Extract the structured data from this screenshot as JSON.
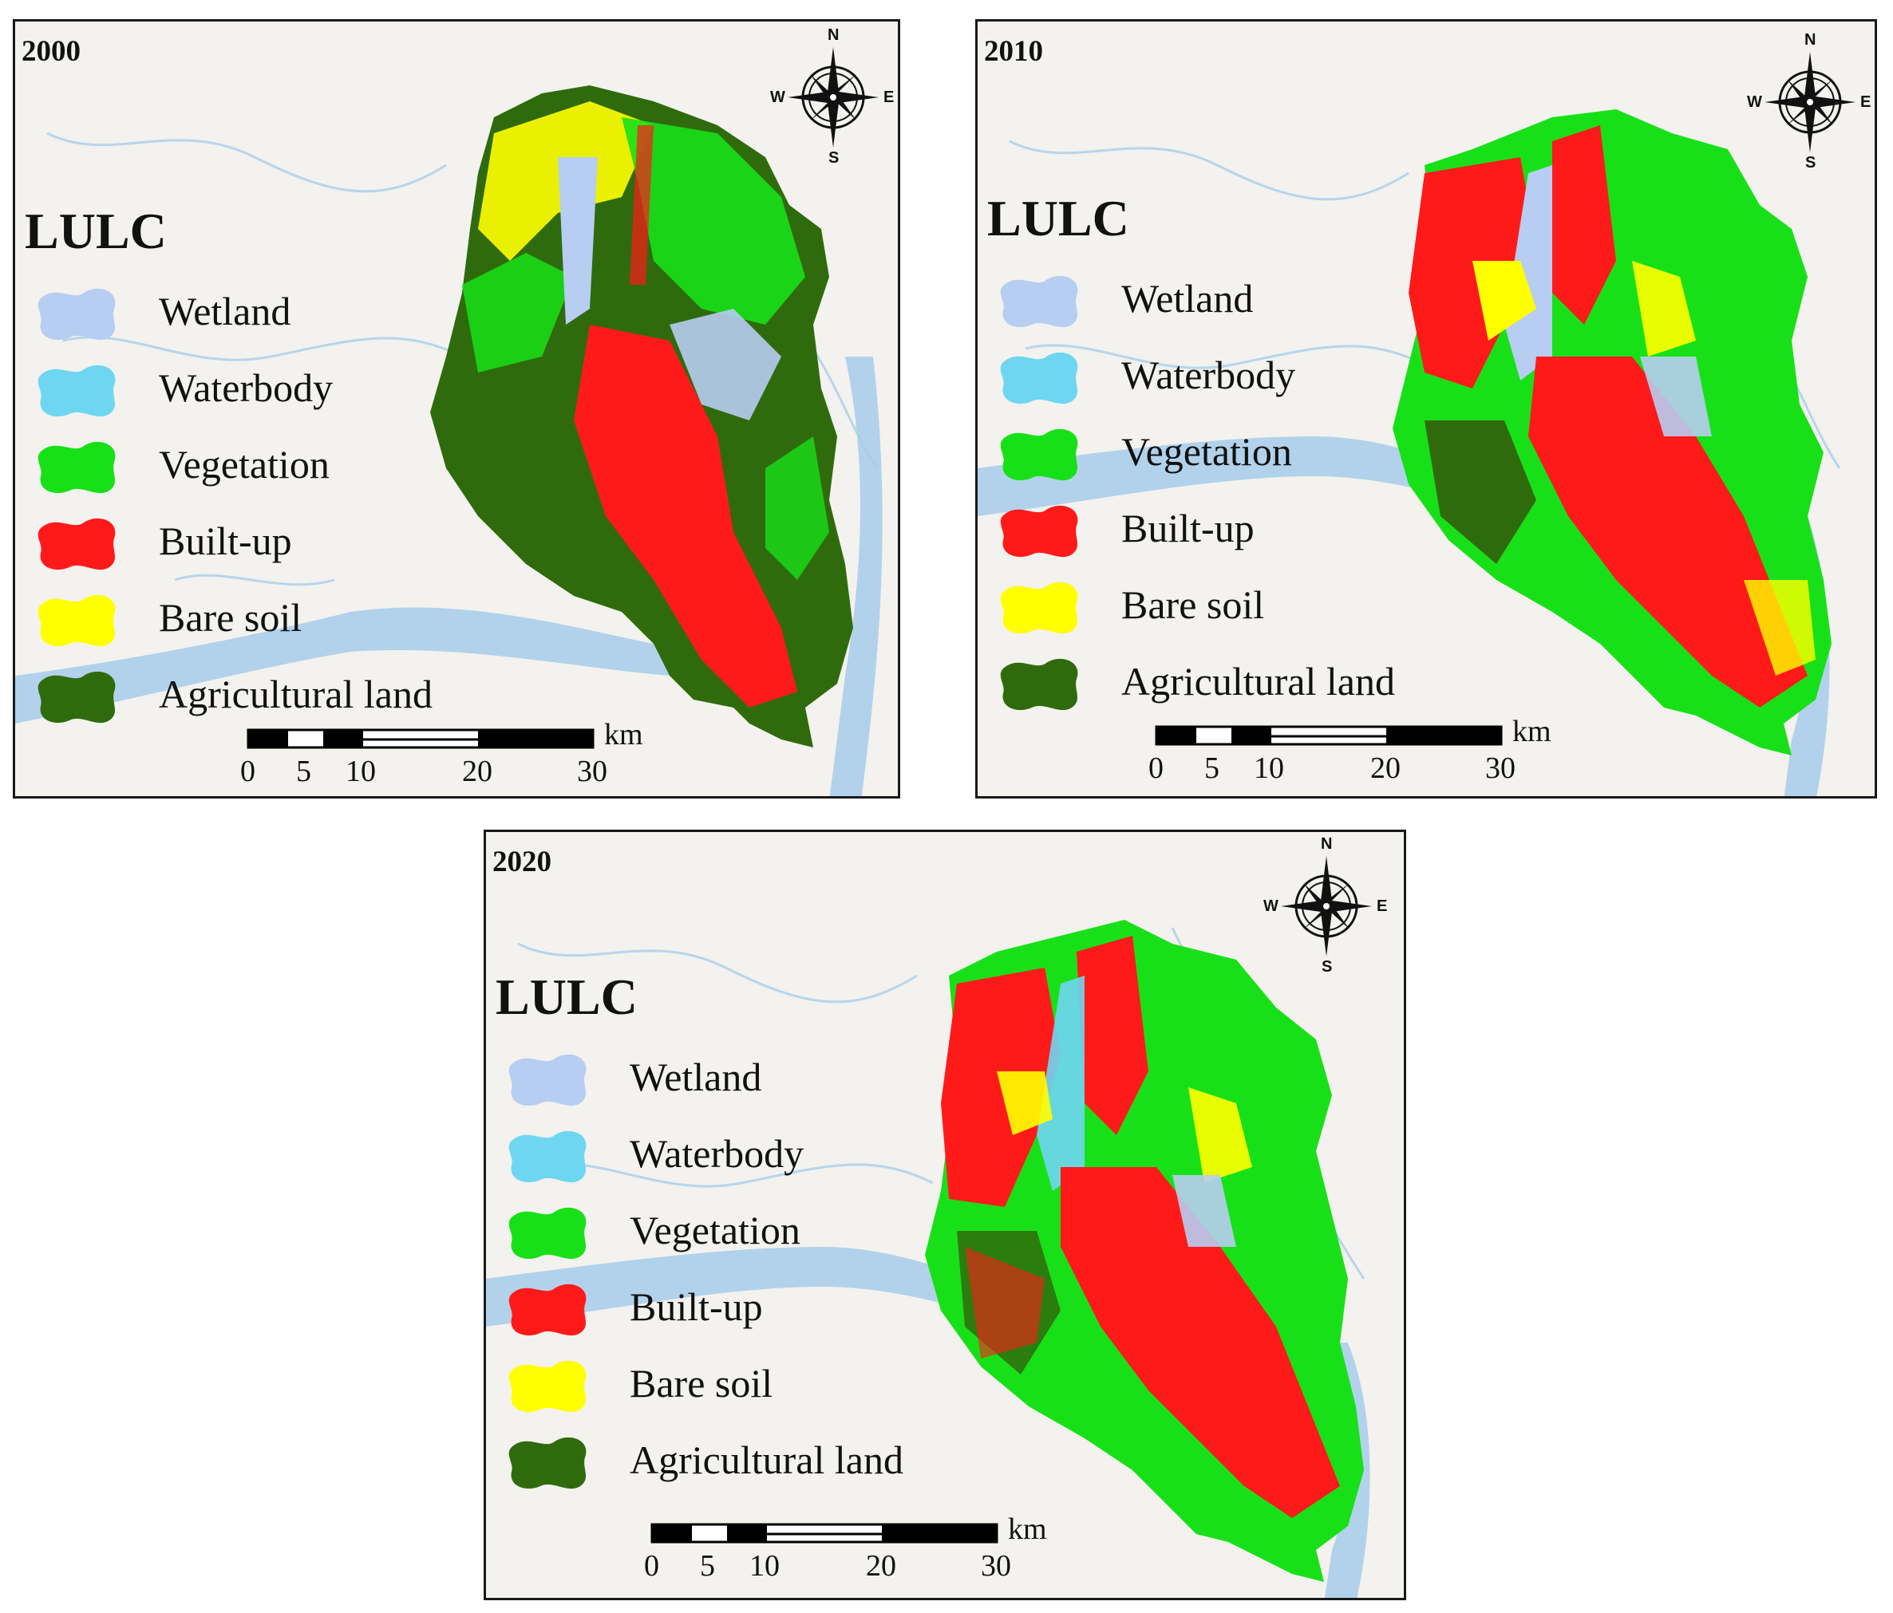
{
  "legend": {
    "title": "LULC",
    "classes": [
      {
        "key": "wetland",
        "label": "Wetland",
        "color": "#b7cdf2"
      },
      {
        "key": "waterbody",
        "label": "Waterbody",
        "color": "#6fd6f2"
      },
      {
        "key": "vegetation",
        "label": "Vegetation",
        "color": "#18e018"
      },
      {
        "key": "builtup",
        "label": "Built-up",
        "color": "#ff1a1a"
      },
      {
        "key": "baresoil",
        "label": "Bare soil",
        "color": "#ffff00"
      },
      {
        "key": "agricultural",
        "label": "Agricultural land",
        "color": "#2f6b0c"
      }
    ]
  },
  "compass": {
    "north": "N",
    "south": "S",
    "east": "E",
    "west": "W"
  },
  "scale": {
    "unit": "km",
    "ticks": [
      "0",
      "5",
      "10",
      "20",
      "30"
    ]
  },
  "maps": [
    {
      "year": "2000"
    },
    {
      "year": "2010"
    },
    {
      "year": "2020"
    }
  ],
  "colors": {
    "basemap": "#f3f2ee",
    "river": "#aed0ea",
    "mainRiver": "#9cc8e6"
  }
}
